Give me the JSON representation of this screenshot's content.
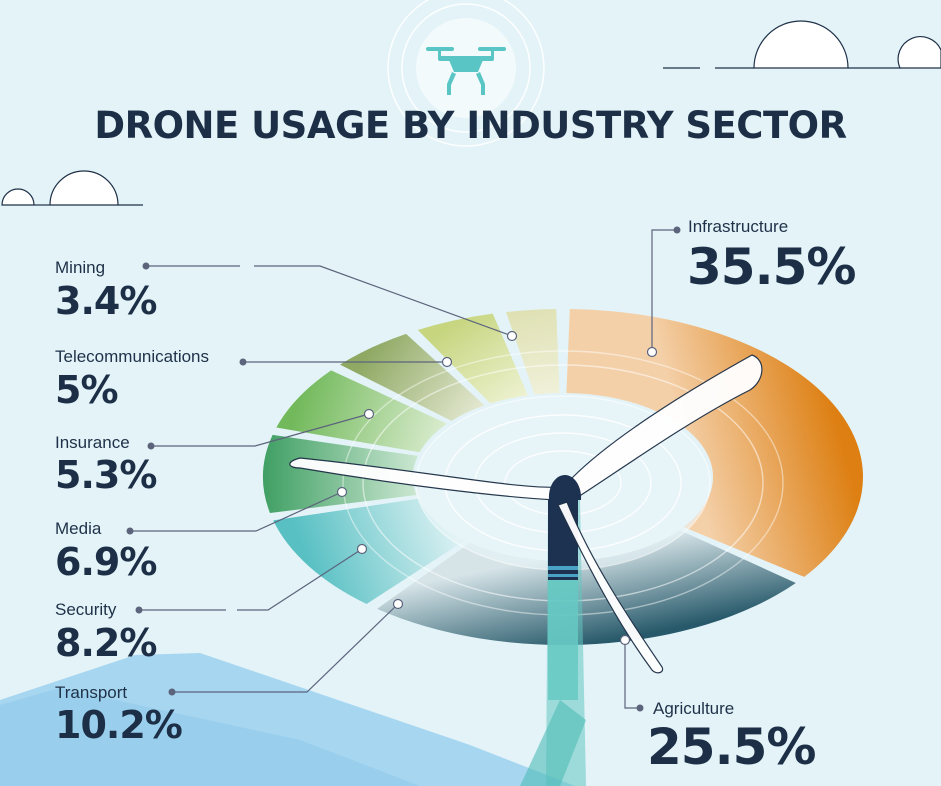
{
  "title": "DRONE USAGE BY INDUSTRY SECTOR",
  "icon": "drone-icon",
  "colors": {
    "background": "#e3f3f8",
    "title": "#1c2f46",
    "leader_line": "#5c647c"
  },
  "chart_data": {
    "type": "pie",
    "title": "DRONE USAGE BY INDUSTRY SECTOR",
    "unit": "%",
    "slices": [
      {
        "label": "Infrastructure",
        "value": 35.5,
        "display": "35.5%",
        "color_from": "#f4d0a9",
        "color_to": "#dd7f12"
      },
      {
        "label": "Agriculture",
        "value": 25.5,
        "display": "25.5%",
        "color_from": "#d6e4e8",
        "color_to": "#27596a"
      },
      {
        "label": "Transport",
        "value": 10.2,
        "display": "10.2%",
        "color_from": "#d9f0f2",
        "color_to": "#58c0c3"
      },
      {
        "label": "Security",
        "value": 8.2,
        "display": "8.2%",
        "color_from": "#d5ecd9",
        "color_to": "#3f9f63"
      },
      {
        "label": "Media",
        "value": 6.9,
        "display": "6.9%",
        "color_from": "#dcedd1",
        "color_to": "#72b95b"
      },
      {
        "label": "Insurance",
        "value": 5.3,
        "display": "5.3%",
        "color_from": "#e5e9d2",
        "color_to": "#8fa964"
      },
      {
        "label": "Telecommunications",
        "value": 5.0,
        "display": "5%",
        "color_from": "#eef2d2",
        "color_to": "#c6d57e"
      },
      {
        "label": "Mining",
        "value": 3.4,
        "display": "3.4%",
        "color_from": "#f1f2dc",
        "color_to": "#dfe1b4"
      }
    ]
  }
}
